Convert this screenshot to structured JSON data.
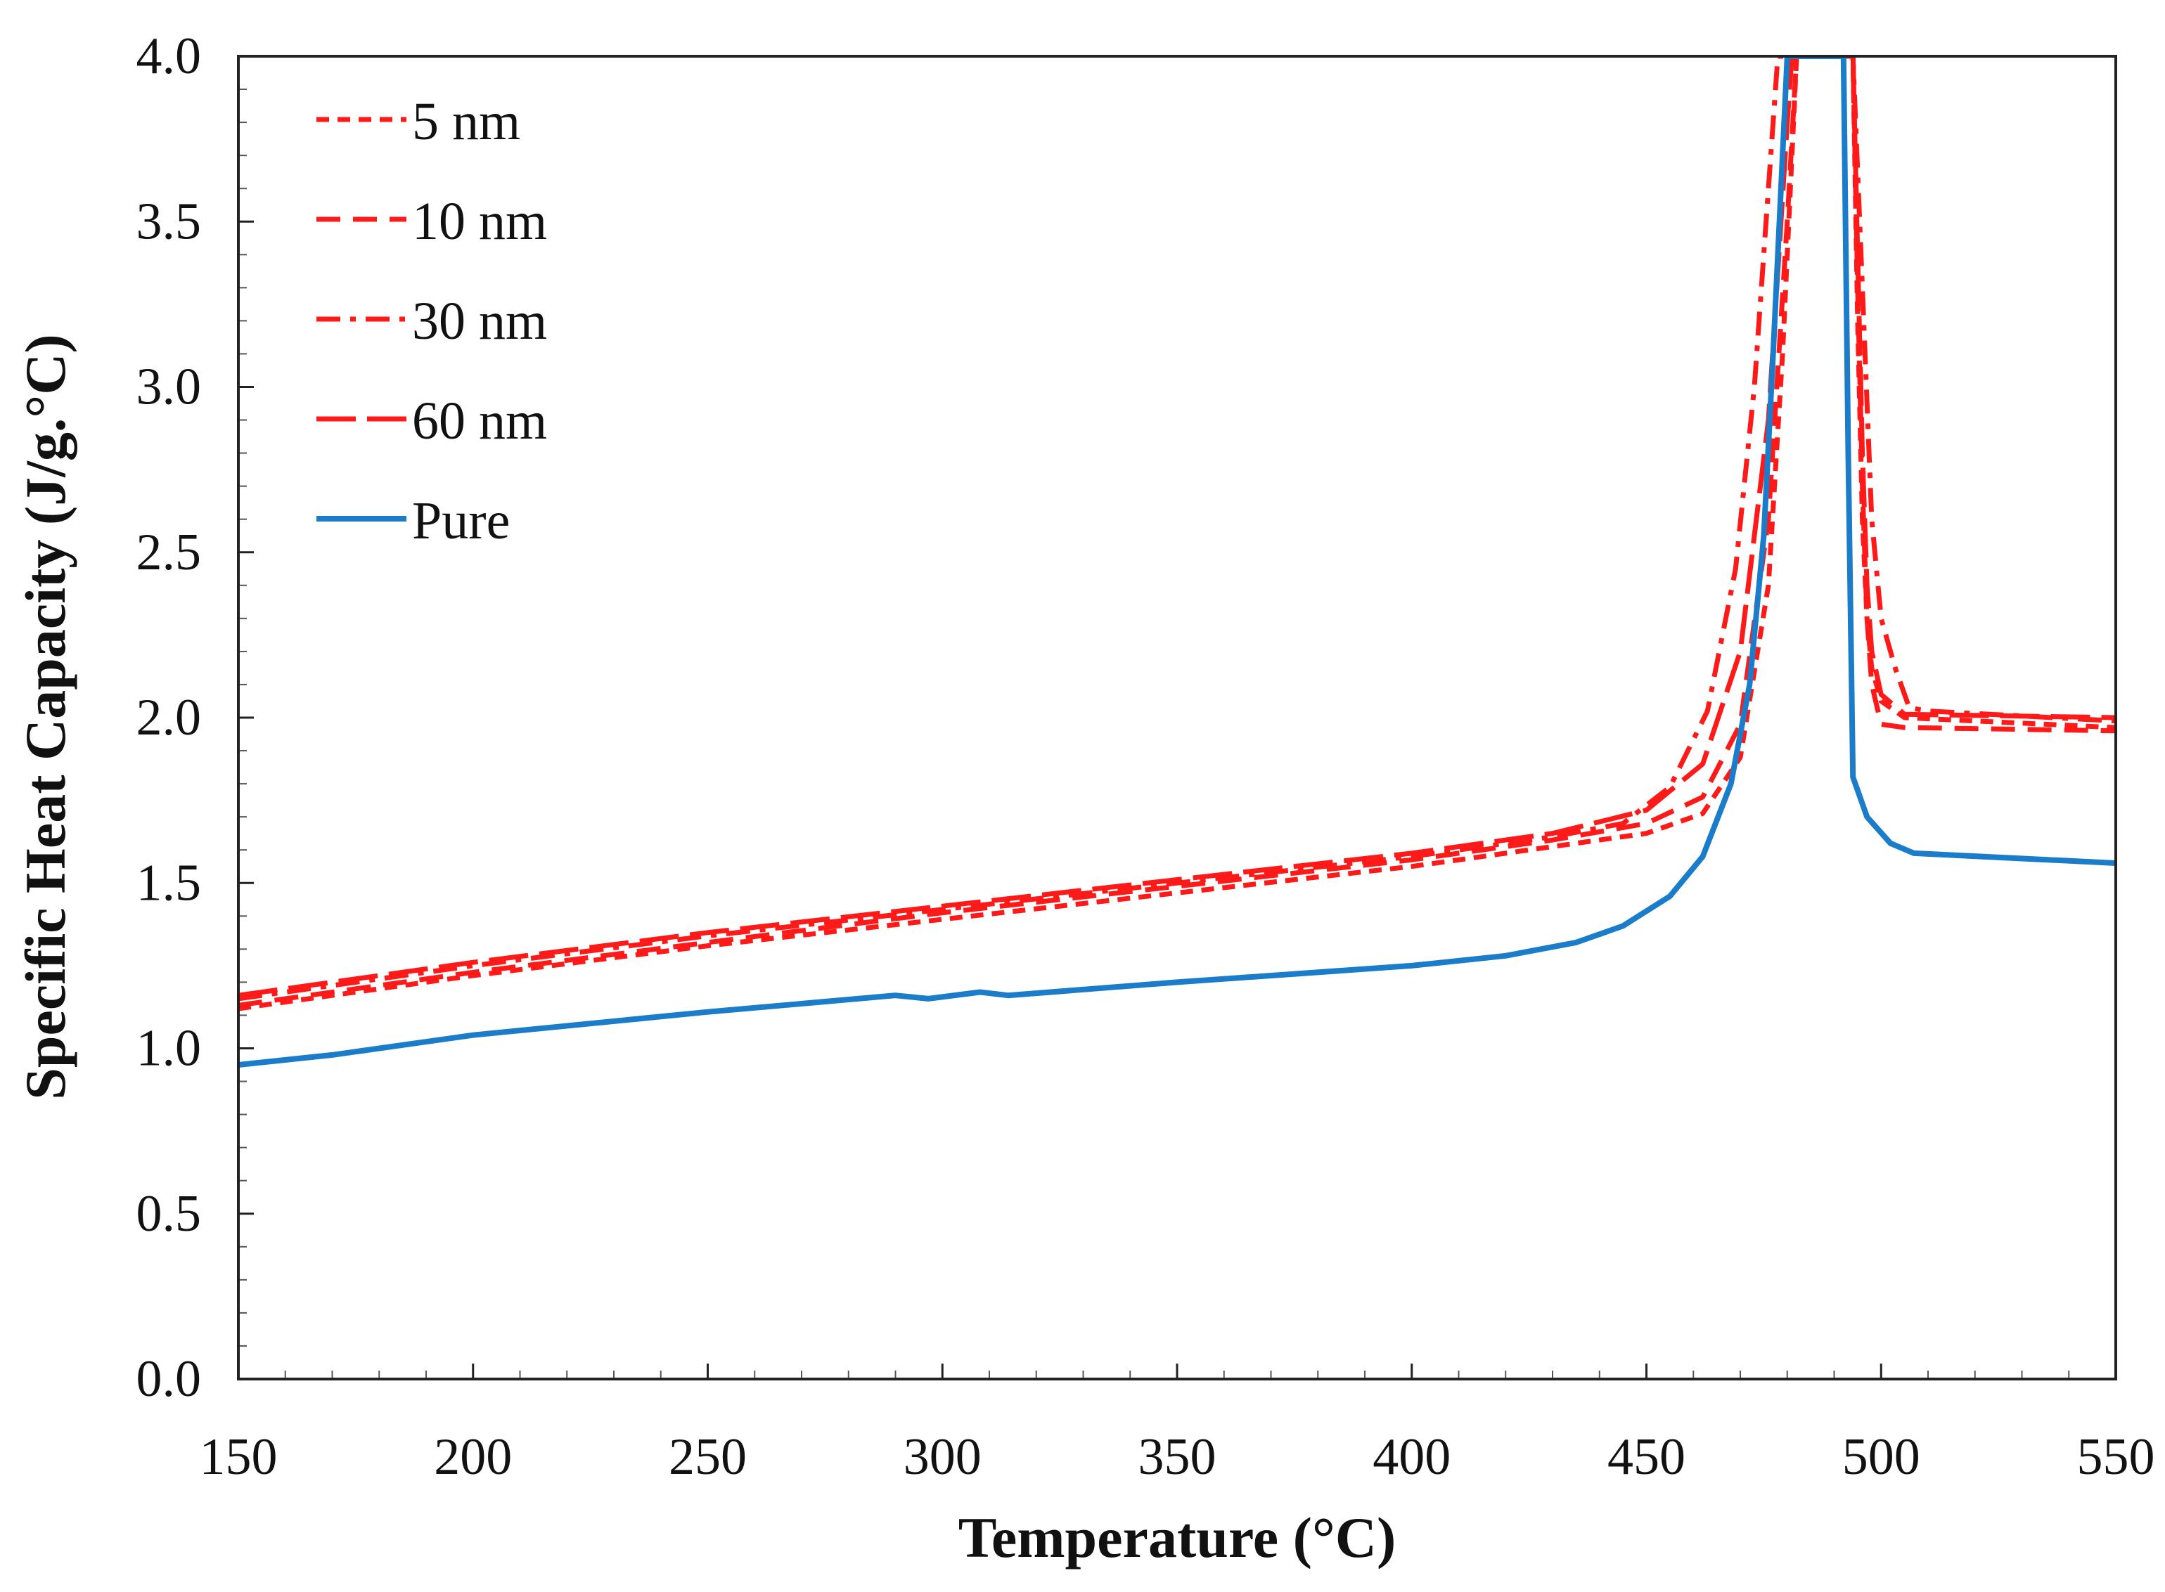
{
  "chart_data": {
    "type": "line",
    "title": "",
    "xlabel": "Temperature (°C)",
    "ylabel": "Specific Heat Capacity (J/g.°C)",
    "xlim": [
      150,
      550
    ],
    "ylim": [
      0.0,
      4.0
    ],
    "x_ticks": [
      150,
      200,
      250,
      300,
      350,
      400,
      450,
      500,
      550
    ],
    "y_ticks": [
      0.0,
      0.5,
      1.0,
      1.5,
      2.0,
      2.5,
      3.0,
      3.5,
      4.0
    ],
    "x_tick_labels": [
      "150",
      "200",
      "250",
      "300",
      "350",
      "400",
      "450",
      "500",
      "550"
    ],
    "y_tick_labels": [
      "0.0",
      "0.5",
      "1.0",
      "1.5",
      "2.0",
      "2.5",
      "3.0",
      "3.5",
      "4.0"
    ],
    "grid": false,
    "legend_position": "top-left",
    "series": [
      {
        "name": "5 nm",
        "color": "#ff1a1a",
        "style": "short-dash",
        "points": [
          [
            150,
            1.12
          ],
          [
            200,
            1.22
          ],
          [
            250,
            1.31
          ],
          [
            300,
            1.39
          ],
          [
            350,
            1.47
          ],
          [
            400,
            1.55
          ],
          [
            430,
            1.61
          ],
          [
            450,
            1.65
          ],
          [
            462,
            1.71
          ],
          [
            470,
            1.88
          ],
          [
            476,
            2.4
          ],
          [
            479,
            3.1
          ],
          [
            482,
            4.0
          ],
          [
            494,
            4.0
          ],
          [
            495,
            3.2
          ],
          [
            496,
            2.6
          ],
          [
            497,
            2.3
          ],
          [
            498,
            2.15
          ],
          [
            500,
            2.05
          ],
          [
            505,
            2.0
          ],
          [
            550,
            1.97
          ]
        ]
      },
      {
        "name": "10 nm",
        "color": "#ff1a1a",
        "style": "dash",
        "points": [
          [
            150,
            1.13
          ],
          [
            200,
            1.23
          ],
          [
            250,
            1.32
          ],
          [
            300,
            1.41
          ],
          [
            350,
            1.49
          ],
          [
            400,
            1.57
          ],
          [
            430,
            1.63
          ],
          [
            450,
            1.68
          ],
          [
            462,
            1.76
          ],
          [
            470,
            1.98
          ],
          [
            476,
            2.6
          ],
          [
            480,
            3.5
          ],
          [
            482,
            4.0
          ],
          [
            494,
            4.0
          ],
          [
            495,
            3.3
          ],
          [
            496,
            2.7
          ],
          [
            497,
            2.3
          ],
          [
            498,
            2.1
          ],
          [
            500,
            1.98
          ],
          [
            505,
            1.97
          ],
          [
            550,
            1.96
          ]
        ]
      },
      {
        "name": "30 nm",
        "color": "#ff1a1a",
        "style": "dash-dot",
        "points": [
          [
            150,
            1.15
          ],
          [
            200,
            1.25
          ],
          [
            250,
            1.34
          ],
          [
            300,
            1.42
          ],
          [
            350,
            1.5
          ],
          [
            400,
            1.58
          ],
          [
            430,
            1.64
          ],
          [
            445,
            1.68
          ],
          [
            455,
            1.79
          ],
          [
            463,
            2.02
          ],
          [
            469,
            2.45
          ],
          [
            473,
            3.0
          ],
          [
            476,
            3.6
          ],
          [
            478,
            4.0
          ],
          [
            494,
            4.0
          ],
          [
            496,
            3.3
          ],
          [
            498,
            2.6
          ],
          [
            500,
            2.3
          ],
          [
            503,
            2.15
          ],
          [
            506,
            2.03
          ],
          [
            510,
            2.02
          ],
          [
            550,
            1.99
          ]
        ]
      },
      {
        "name": "60 nm",
        "color": "#ff1a1a",
        "style": "long-dash",
        "points": [
          [
            150,
            1.16
          ],
          [
            200,
            1.26
          ],
          [
            250,
            1.35
          ],
          [
            300,
            1.43
          ],
          [
            350,
            1.51
          ],
          [
            400,
            1.59
          ],
          [
            430,
            1.65
          ],
          [
            450,
            1.72
          ],
          [
            462,
            1.86
          ],
          [
            470,
            2.2
          ],
          [
            476,
            2.9
          ],
          [
            480,
            3.8
          ],
          [
            481,
            4.0
          ],
          [
            494,
            4.0
          ],
          [
            495,
            3.4
          ],
          [
            496,
            2.8
          ],
          [
            497,
            2.4
          ],
          [
            498,
            2.2
          ],
          [
            500,
            2.07
          ],
          [
            505,
            2.01
          ],
          [
            550,
            2.0
          ]
        ]
      },
      {
        "name": "Pure",
        "color": "#1b7cc9",
        "style": "solid",
        "points": [
          [
            150,
            0.95
          ],
          [
            170,
            0.98
          ],
          [
            200,
            1.04
          ],
          [
            250,
            1.11
          ],
          [
            290,
            1.16
          ],
          [
            297,
            1.15
          ],
          [
            308,
            1.17
          ],
          [
            314,
            1.16
          ],
          [
            350,
            1.2
          ],
          [
            400,
            1.25
          ],
          [
            420,
            1.28
          ],
          [
            435,
            1.32
          ],
          [
            445,
            1.37
          ],
          [
            455,
            1.46
          ],
          [
            462,
            1.58
          ],
          [
            468,
            1.8
          ],
          [
            472,
            2.1
          ],
          [
            475,
            2.55
          ],
          [
            477,
            3.1
          ],
          [
            479,
            3.7
          ],
          [
            480,
            4.0
          ],
          [
            492,
            4.0
          ],
          [
            493,
            2.8
          ],
          [
            494,
            1.82
          ],
          [
            495,
            1.78
          ],
          [
            497,
            1.7
          ],
          [
            502,
            1.62
          ],
          [
            507,
            1.59
          ],
          [
            550,
            1.56
          ]
        ]
      }
    ]
  }
}
